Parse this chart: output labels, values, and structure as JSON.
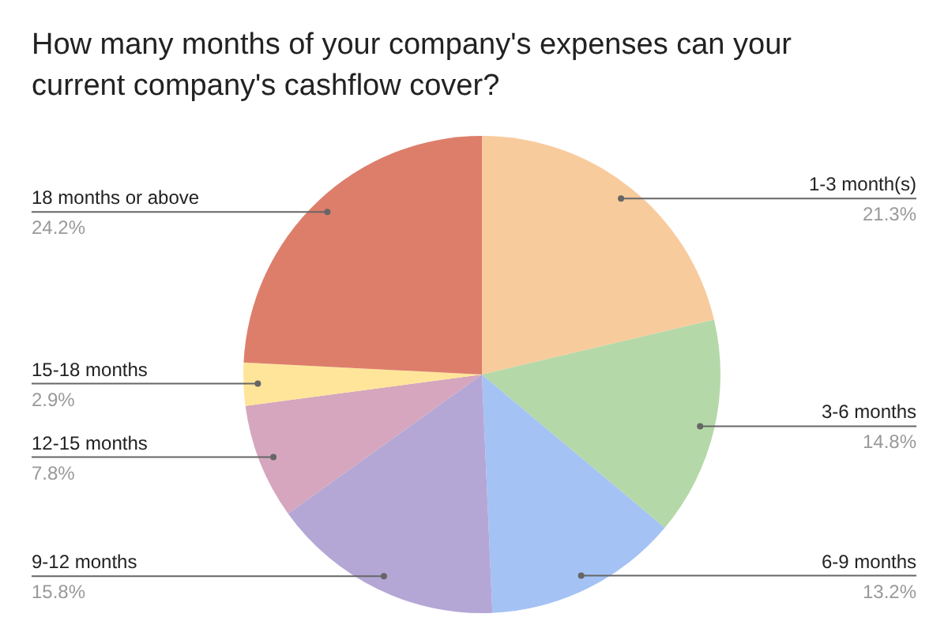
{
  "chart_data": {
    "type": "pie",
    "title": "How many months of your company's expenses can your current company's cashflow cover?",
    "categories": [
      "1-3 month(s)",
      "3-6 months",
      "6-9 months",
      "9-12 months",
      "12-15 months",
      "15-18 months",
      "18 months or above"
    ],
    "values": [
      21.3,
      14.8,
      13.2,
      15.8,
      7.8,
      2.9,
      24.2
    ],
    "value_labels": [
      "21.3%",
      "14.8%",
      "13.2%",
      "15.8%",
      "7.8%",
      "2.9%",
      "24.2%"
    ],
    "colors": [
      "#f8cb9c",
      "#b5d8a8",
      "#a4c2f4",
      "#b4a7d6",
      "#d5a6bd",
      "#ffe599",
      "#dd7e6b"
    ],
    "legend": false
  }
}
